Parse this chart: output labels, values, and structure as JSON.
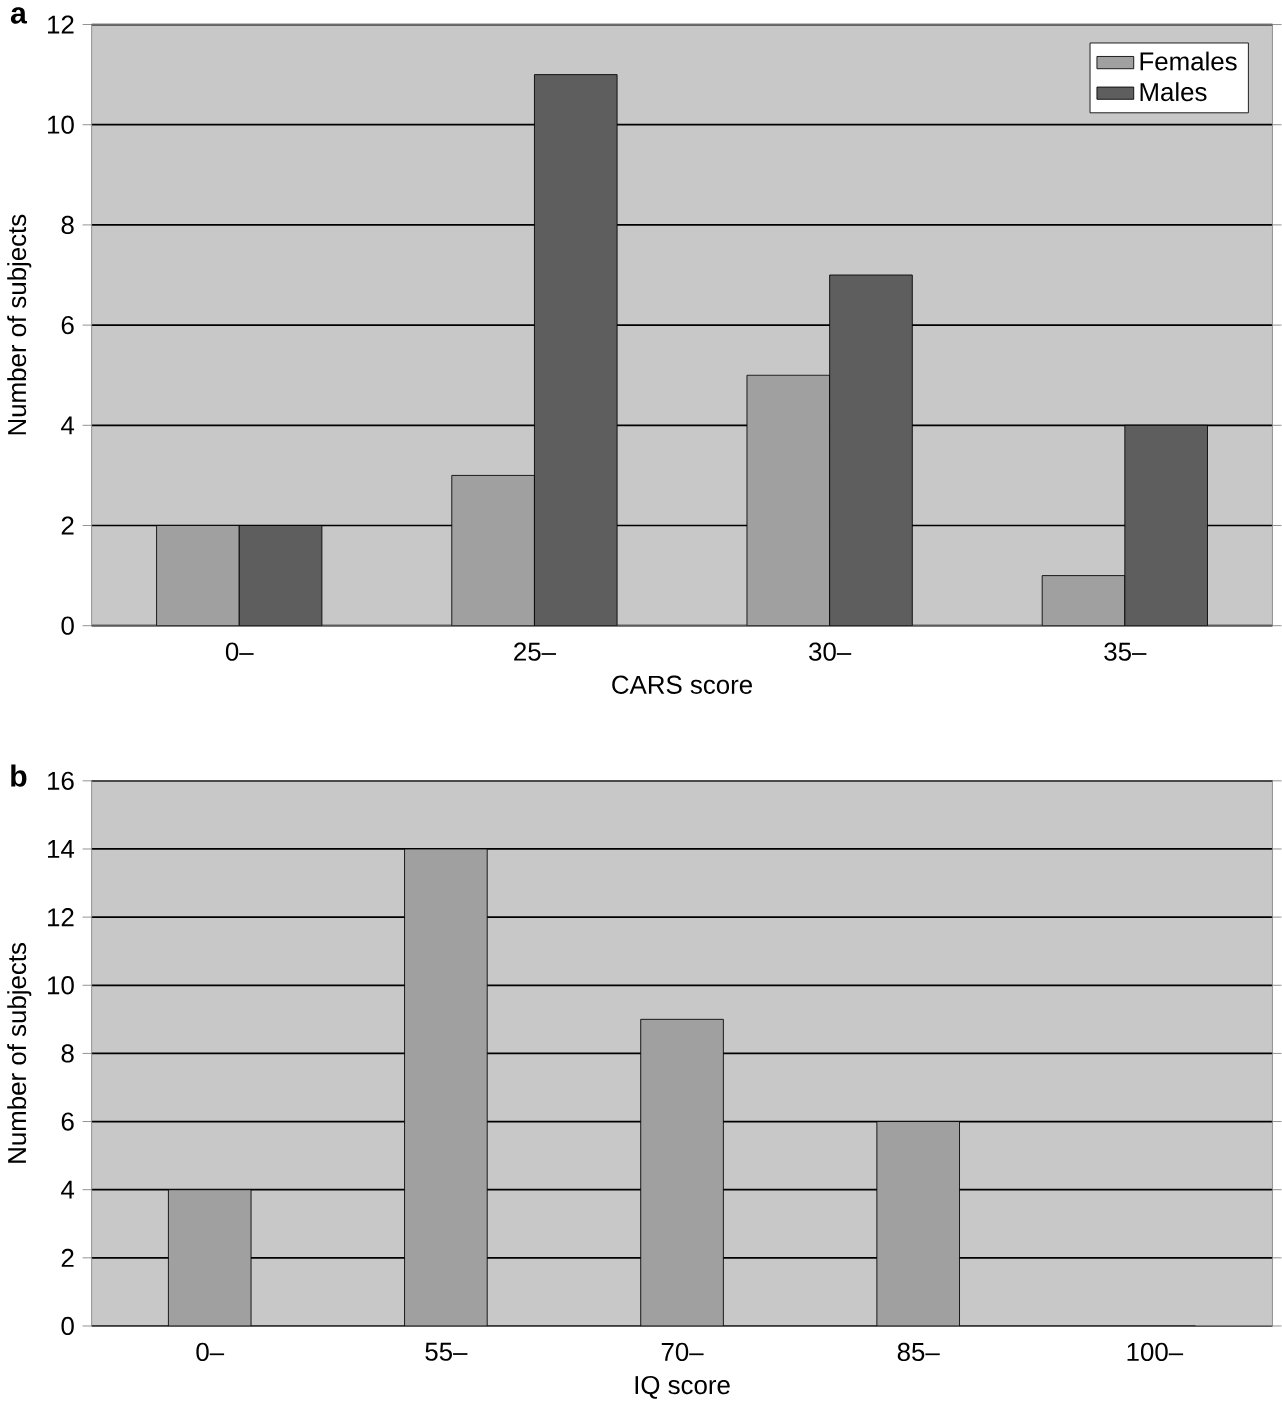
{
  "chart_data": [
    {
      "type": "bar",
      "title": "a",
      "xlabel": "CARS score",
      "ylabel": "Number of subjects",
      "categories": [
        "0–",
        "25–",
        "30–",
        "35–"
      ],
      "series": [
        {
          "name": "Females",
          "color": "#a0a0a0",
          "values": [
            2,
            3,
            5,
            1
          ]
        },
        {
          "name": "Males",
          "color": "#5e5e5e",
          "values": [
            2,
            11,
            7,
            4
          ]
        }
      ],
      "ylim": [
        0,
        12
      ],
      "yticks": [
        0,
        2,
        4,
        6,
        8,
        10,
        12
      ],
      "grid": "y",
      "legend": "top right"
    },
    {
      "type": "bar",
      "title": "b",
      "xlabel": "IQ score",
      "ylabel": "Number of subjects",
      "categories": [
        "0–",
        "55–",
        "70–",
        "85–",
        "100–"
      ],
      "values": [
        4,
        14,
        9,
        6,
        0
      ],
      "color": "#a0a0a0",
      "ylim": [
        0,
        16
      ],
      "yticks": [
        0,
        2,
        4,
        6,
        8,
        10,
        12,
        14,
        16
      ],
      "grid": "y"
    }
  ]
}
